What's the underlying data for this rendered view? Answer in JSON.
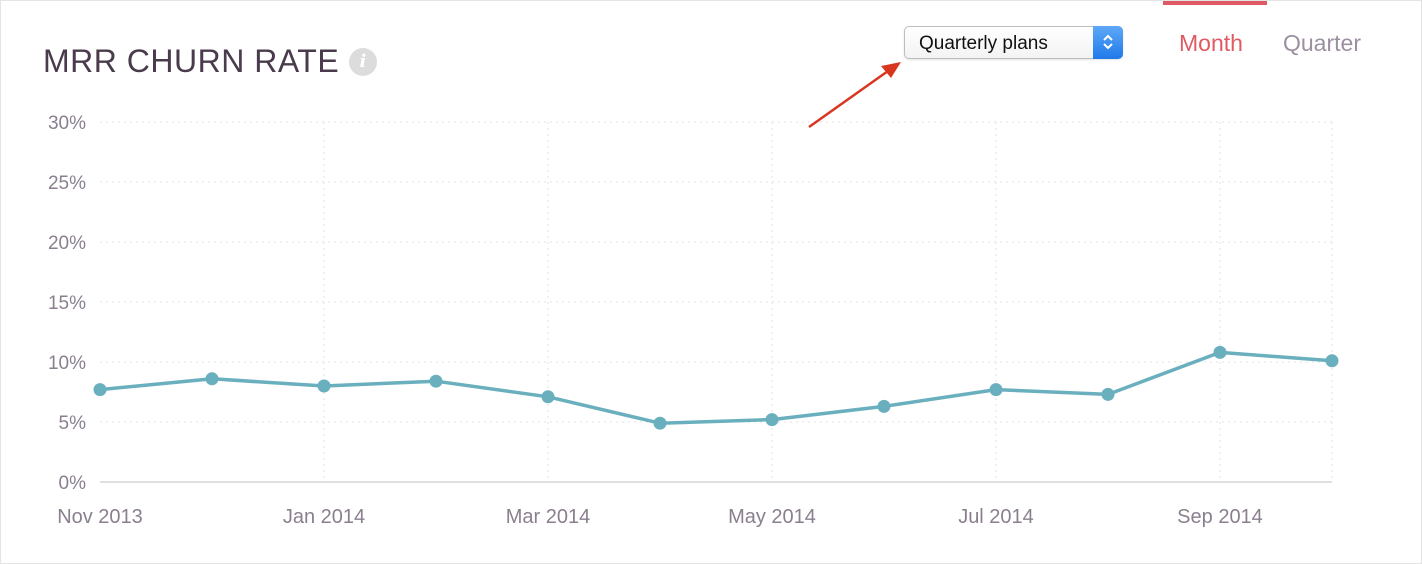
{
  "header": {
    "title": "MRR CHURN RATE",
    "info_glyph": "i"
  },
  "plan_select": {
    "value": "Quarterly plans"
  },
  "period_toggle": {
    "month_label": "Month",
    "quarter_label": "Quarter",
    "active": "Month"
  },
  "colors": {
    "line": "#6aafbe",
    "active_tab": "#e05a63",
    "inactive_tab": "#9b8fa0",
    "annotation_arrow": "#d9361f"
  },
  "chart_data": {
    "type": "line",
    "title": "MRR CHURN RATE",
    "xlabel": "",
    "ylabel": "",
    "ylim": [
      0,
      30
    ],
    "yticks": [
      "0%",
      "5%",
      "10%",
      "15%",
      "20%",
      "25%",
      "30%"
    ],
    "ytick_values": [
      0,
      5,
      10,
      15,
      20,
      25,
      30
    ],
    "x": [
      "Nov 2013",
      "Dec 2013",
      "Jan 2014",
      "Feb 2014",
      "Mar 2014",
      "Apr 2014",
      "May 2014",
      "Jun 2014",
      "Jul 2014",
      "Aug 2014",
      "Sep 2014",
      "Oct 2014"
    ],
    "xtick_labels": [
      "Nov 2013",
      "Jan 2014",
      "Mar 2014",
      "May 2014",
      "Jul 2014",
      "Sep 2014"
    ],
    "series": [
      {
        "values": [
          7.7,
          8.6,
          8.0,
          8.4,
          7.1,
          4.9,
          5.2,
          6.3,
          7.7,
          7.3,
          10.8,
          10.1
        ]
      }
    ],
    "grid": true,
    "legend": "none"
  }
}
